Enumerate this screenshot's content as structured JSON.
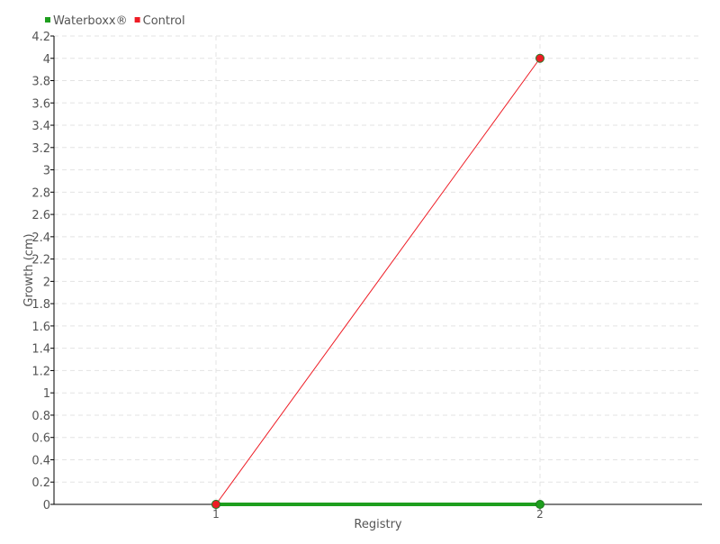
{
  "chart_data": {
    "type": "line",
    "title": "",
    "xlabel": "Registry",
    "ylabel": "Growth (cm)",
    "x": [
      1,
      2
    ],
    "xlim": [
      0.5,
      2.5
    ],
    "ylim": [
      0,
      4.2
    ],
    "x_ticks": [
      "1",
      "2"
    ],
    "y_ticks": [
      "0",
      "0.2",
      "0.4",
      "0.6",
      "0.8",
      "1",
      "1.2",
      "1.4",
      "1.6",
      "1.8",
      "2",
      "2.2",
      "2.4",
      "2.6",
      "2.8",
      "3",
      "3.2",
      "3.4",
      "3.6",
      "3.8",
      "4",
      "4.2"
    ],
    "grid": true,
    "legend_position": "top-left",
    "series": [
      {
        "name": "Waterboxx®",
        "values": [
          0,
          0
        ],
        "color": "#1e9e1e"
      },
      {
        "name": "Control",
        "values": [
          0,
          4
        ],
        "color": "#ee1c25"
      }
    ]
  }
}
